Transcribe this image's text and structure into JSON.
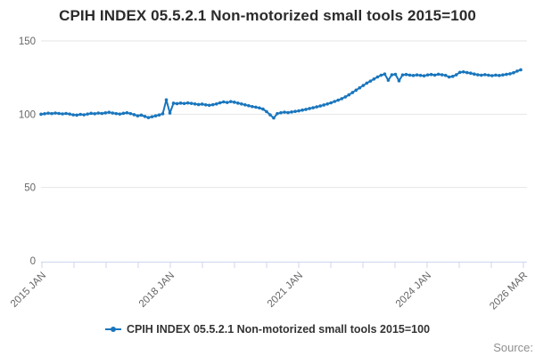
{
  "title": "CPIH INDEX 05.5.2.1 Non-motorized small tools 2015=100",
  "legend": {
    "label": "CPIH INDEX 05.5.2.1 Non-motorized small tools 2015=100"
  },
  "source_label": "Source:",
  "colors": {
    "line": "#1976bd",
    "grid": "#e6e6e6",
    "axis": "#ccd6eb",
    "tick_label": "#666666",
    "title": "#2b2b2b",
    "legend_text": "#333333",
    "source": "#8f8f8f"
  },
  "chart_data": {
    "type": "line",
    "title": "CPIH INDEX 05.5.2.1 Non-motorized small tools 2015=100",
    "xlabel": "",
    "ylabel": "",
    "ylim": [
      0,
      150
    ],
    "y_ticks": [
      0,
      50,
      100,
      150
    ],
    "grid": "horizontal",
    "legend_position": "bottom-center",
    "x_frequency": "monthly",
    "x_start": "2015 JAN",
    "x_end": "2026 MAR",
    "x_tick_labels": [
      "2015 JAN",
      "2018 JAN",
      "2021 JAN",
      "2024 JAN",
      "2026 MAR"
    ],
    "series": [
      {
        "name": "CPIH INDEX 05.5.2.1 Non-motorized small tools 2015=100",
        "values": [
          100.0,
          100.3,
          100.7,
          100.4,
          100.8,
          100.5,
          100.2,
          100.5,
          100.1,
          99.6,
          99.4,
          99.9,
          99.6,
          100.1,
          100.6,
          100.3,
          100.8,
          100.5,
          100.9,
          101.3,
          100.8,
          100.4,
          100.1,
          100.6,
          101.0,
          100.4,
          99.7,
          98.9,
          99.4,
          98.5,
          97.7,
          98.3,
          98.9,
          99.5,
          100.3,
          109.8,
          100.8,
          107.5,
          107.2,
          107.6,
          107.3,
          107.7,
          107.4,
          107.0,
          106.6,
          106.9,
          106.4,
          106.1,
          106.5,
          107.0,
          107.8,
          108.4,
          108.0,
          108.6,
          108.2,
          107.6,
          107.0,
          106.4,
          105.8,
          105.2,
          104.8,
          104.3,
          103.5,
          101.8,
          99.6,
          97.4,
          100.4,
          101.0,
          101.4,
          101.1,
          101.5,
          101.9,
          102.3,
          102.8,
          103.3,
          103.9,
          104.4,
          105.0,
          105.6,
          106.3,
          107.0,
          107.8,
          108.7,
          109.6,
          110.6,
          111.8,
          113.2,
          114.8,
          116.4,
          118.0,
          119.6,
          121.2,
          122.6,
          124.0,
          125.4,
          126.6,
          127.4,
          123.2,
          126.9,
          127.2,
          122.8,
          126.8,
          127.1,
          126.7,
          126.4,
          126.8,
          126.5,
          126.2,
          126.8,
          127.1,
          126.7,
          127.3,
          126.9,
          126.5,
          125.4,
          125.8,
          126.9,
          128.6,
          128.9,
          128.4,
          128.0,
          127.4,
          126.9,
          126.6,
          127.0,
          126.6,
          126.3,
          126.7,
          126.4,
          126.8,
          127.2,
          127.6,
          128.3,
          129.4,
          130.3
        ]
      }
    ]
  }
}
